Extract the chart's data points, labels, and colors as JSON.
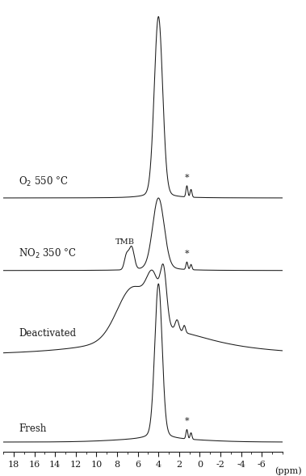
{
  "xlim": [
    19,
    -8
  ],
  "background_color": "#ffffff",
  "line_color": "#1a1a1a",
  "xticks": [
    18,
    16,
    14,
    12,
    10,
    8,
    6,
    4,
    2,
    0,
    -2,
    -4,
    -6
  ]
}
